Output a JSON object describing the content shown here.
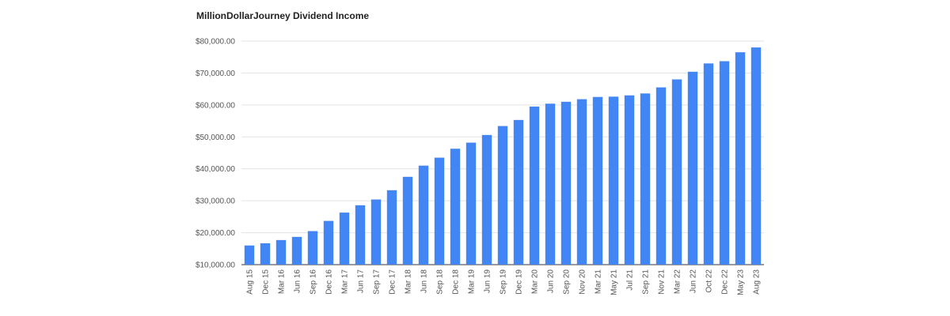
{
  "chart_data": {
    "type": "bar",
    "title": "MillionDollarJourney Dividend Income",
    "xlabel": "",
    "ylabel": "",
    "ylim": [
      10000,
      80000
    ],
    "yticks": [
      10000,
      20000,
      30000,
      40000,
      50000,
      60000,
      70000,
      80000
    ],
    "ytick_labels": [
      "$10,000.00",
      "$20,000.00",
      "$30,000.00",
      "$40,000.00",
      "$50,000.00",
      "$60,000.00",
      "$70,000.00",
      "$80,000.00"
    ],
    "grid": true,
    "legend": "none",
    "bar_color": "#4285f4",
    "categories": [
      "Aug 15",
      "Dec 15",
      "Mar 16",
      "Jun 16",
      "Sep 16",
      "Dec 16",
      "Mar 17",
      "Jun 17",
      "Sep 17",
      "Dec 17",
      "Mar 18",
      "Jun 18",
      "Sep 18",
      "Dec 18",
      "Mar 19",
      "Jun 19",
      "Sep 19",
      "Dec 19",
      "Mar 20",
      "Jun 20",
      "Sep 20",
      "Nov 20",
      "Mar 21",
      "May 21",
      "Jul 21",
      "Sep 21",
      "Nov 21",
      "Mar 22",
      "Jun 22",
      "Oct 22",
      "Dec 22",
      "May 23",
      "Aug 23"
    ],
    "values": [
      16000,
      16700,
      17700,
      18700,
      20500,
      23700,
      26300,
      28600,
      30400,
      33300,
      37500,
      41000,
      43500,
      46300,
      48200,
      50600,
      53400,
      55300,
      59500,
      60400,
      61000,
      61800,
      62500,
      62600,
      63000,
      63600,
      65500,
      68000,
      70400,
      73000,
      73700,
      76500,
      78000
    ]
  }
}
